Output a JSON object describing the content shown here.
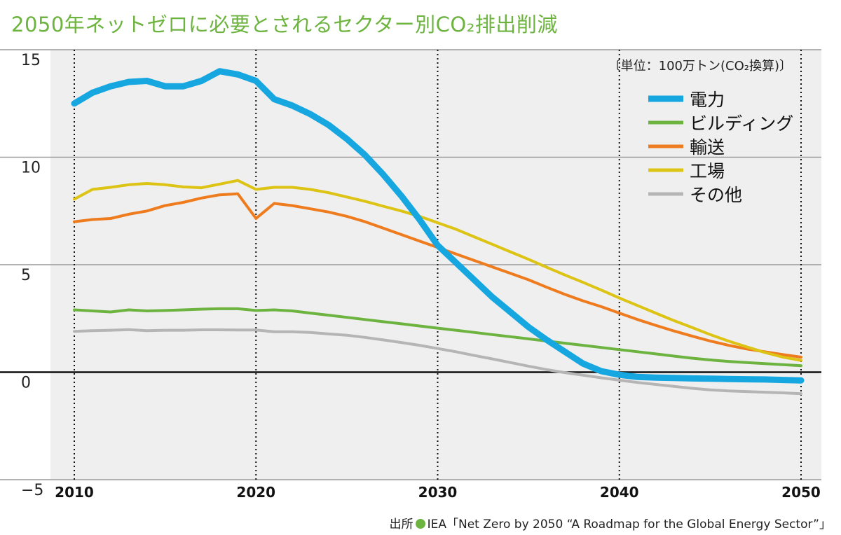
{
  "title": "2050年ネットゼロに必要とされるセクター別CO₂排出削減",
  "source": {
    "label": "出所",
    "text": "IEA「Net Zero by 2050 “A Roadmap for the Global Energy Sector”」"
  },
  "chart_data": {
    "type": "line",
    "unit_note": "〔単位：100万トン(CO₂換算)〕",
    "xlim": [
      2010,
      2050
    ],
    "ylim": [
      -5,
      15
    ],
    "x_ticks": [
      2010,
      2020,
      2030,
      2040,
      2050
    ],
    "x_tick_labels": [
      "2010",
      "2020",
      "2030",
      "2040",
      "2050"
    ],
    "y_ticks": [
      -5,
      0,
      5,
      10,
      15
    ],
    "y_tick_labels": [
      "−5",
      "0",
      "5",
      "10",
      "15"
    ],
    "grid": {
      "horizontal": true,
      "vertical_dotted": true
    },
    "legend_position": "top-right",
    "x": [
      2010,
      2011,
      2012,
      2013,
      2014,
      2015,
      2016,
      2017,
      2018,
      2019,
      2020,
      2021,
      2022,
      2023,
      2024,
      2025,
      2026,
      2027,
      2028,
      2029,
      2030,
      2031,
      2032,
      2033,
      2034,
      2035,
      2036,
      2037,
      2038,
      2039,
      2040,
      2041,
      2042,
      2043,
      2044,
      2045,
      2046,
      2047,
      2048,
      2049,
      2050
    ],
    "series": [
      {
        "name": "電力",
        "color": "#16a7e0",
        "values": [
          12.5,
          13.0,
          13.3,
          13.5,
          13.55,
          13.3,
          13.3,
          13.55,
          14.0,
          13.85,
          13.55,
          12.7,
          12.4,
          12.0,
          11.5,
          10.85,
          10.1,
          9.2,
          8.2,
          7.1,
          5.9,
          5.1,
          4.3,
          3.5,
          2.8,
          2.1,
          1.5,
          0.95,
          0.4,
          0.05,
          -0.12,
          -0.22,
          -0.25,
          -0.27,
          -0.29,
          -0.3,
          -0.32,
          -0.33,
          -0.34,
          -0.36,
          -0.38
        ]
      },
      {
        "name": "ビルディング",
        "color": "#6db33f",
        "values": [
          2.9,
          2.85,
          2.8,
          2.9,
          2.85,
          2.87,
          2.9,
          2.93,
          2.95,
          2.95,
          2.87,
          2.9,
          2.85,
          2.75,
          2.65,
          2.55,
          2.45,
          2.35,
          2.25,
          2.15,
          2.05,
          1.95,
          1.85,
          1.75,
          1.65,
          1.55,
          1.45,
          1.35,
          1.25,
          1.15,
          1.05,
          0.95,
          0.85,
          0.75,
          0.65,
          0.57,
          0.5,
          0.45,
          0.4,
          0.35,
          0.3
        ]
      },
      {
        "name": "輸送",
        "color": "#ee7b1e",
        "values": [
          7.0,
          7.1,
          7.15,
          7.35,
          7.5,
          7.75,
          7.9,
          8.1,
          8.25,
          8.3,
          7.15,
          7.85,
          7.75,
          7.6,
          7.45,
          7.25,
          7.0,
          6.7,
          6.4,
          6.1,
          5.8,
          5.5,
          5.2,
          4.9,
          4.6,
          4.3,
          3.95,
          3.62,
          3.32,
          3.05,
          2.75,
          2.45,
          2.18,
          1.92,
          1.68,
          1.45,
          1.25,
          1.08,
          0.95,
          0.82,
          0.7
        ]
      },
      {
        "name": "工場",
        "color": "#dcc314",
        "values": [
          8.05,
          8.5,
          8.6,
          8.72,
          8.78,
          8.72,
          8.62,
          8.58,
          8.75,
          8.92,
          8.5,
          8.6,
          8.6,
          8.5,
          8.35,
          8.15,
          7.95,
          7.72,
          7.5,
          7.25,
          6.95,
          6.65,
          6.3,
          5.95,
          5.6,
          5.25,
          4.88,
          4.52,
          4.18,
          3.82,
          3.45,
          3.1,
          2.75,
          2.4,
          2.08,
          1.75,
          1.45,
          1.18,
          0.92,
          0.7,
          0.55
        ]
      },
      {
        "name": "その他",
        "color": "#b5b5b5",
        "values": [
          1.9,
          1.93,
          1.95,
          1.98,
          1.93,
          1.95,
          1.95,
          1.97,
          1.97,
          1.96,
          1.96,
          1.88,
          1.88,
          1.85,
          1.78,
          1.72,
          1.62,
          1.5,
          1.38,
          1.25,
          1.1,
          0.95,
          0.78,
          0.62,
          0.45,
          0.28,
          0.12,
          -0.02,
          -0.14,
          -0.26,
          -0.37,
          -0.48,
          -0.57,
          -0.66,
          -0.75,
          -0.82,
          -0.87,
          -0.9,
          -0.93,
          -0.96,
          -1.0
        ]
      }
    ]
  }
}
